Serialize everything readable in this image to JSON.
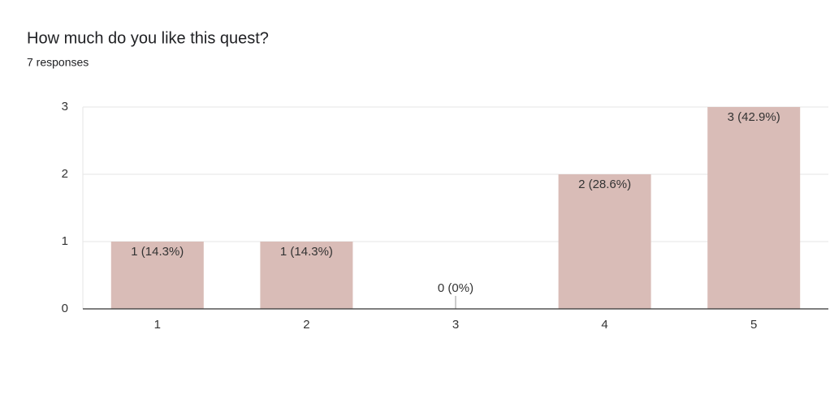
{
  "chart_data": {
    "type": "bar",
    "title": "How much do you like this quest?",
    "subtitle": "7 responses",
    "categories": [
      "1",
      "2",
      "3",
      "4",
      "5"
    ],
    "values": [
      1,
      1,
      0,
      2,
      3
    ],
    "value_labels": [
      "1 (14.3%)",
      "1 (14.3%)",
      "0 (0%)",
      "2 (28.6%)",
      "3 (42.9%)"
    ],
    "color": "#d9bcb7",
    "ylim": [
      0,
      3
    ],
    "yticks": [
      0,
      1,
      2,
      3
    ],
    "grid": true
  }
}
